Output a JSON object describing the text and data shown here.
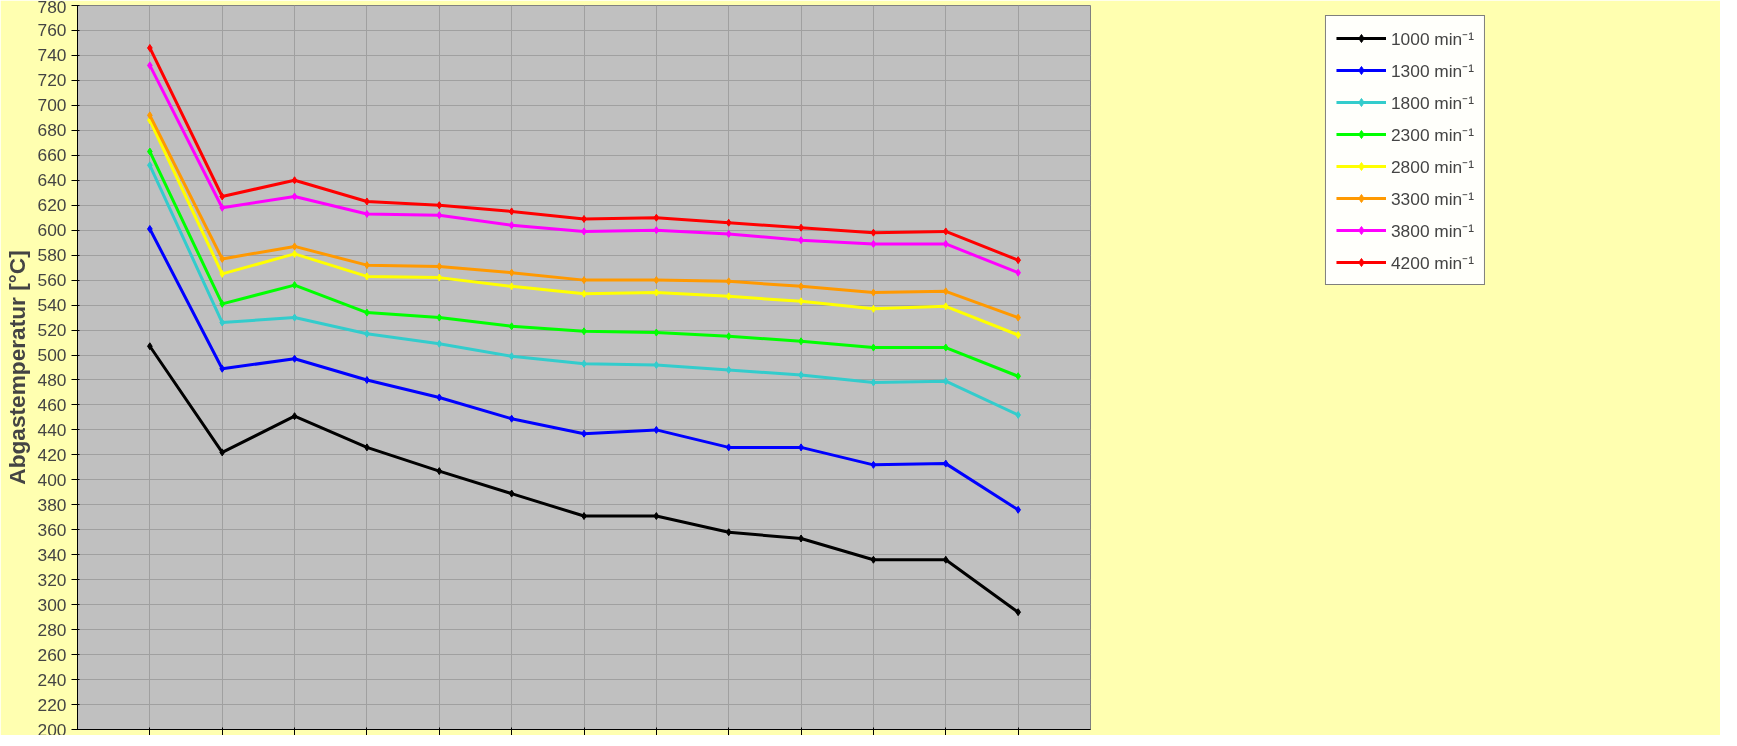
{
  "chart_data": {
    "type": "line",
    "ylabel": "Abgastemperatur [°C]",
    "categories": [
      null,
      null,
      null,
      null,
      null,
      null,
      null,
      null,
      null,
      null,
      null,
      null,
      null
    ],
    "ylim": [
      200,
      780
    ],
    "yticks": [
      200,
      220,
      240,
      260,
      280,
      300,
      320,
      340,
      360,
      380,
      400,
      420,
      440,
      460,
      480,
      500,
      520,
      540,
      560,
      580,
      600,
      620,
      640,
      660,
      680,
      700,
      720,
      740,
      760,
      780
    ],
    "grid": true,
    "legend": "right",
    "marker": "diamond",
    "line_style": "solid",
    "tick_labels": "y",
    "series": [
      {
        "name": "1000 min⁻¹",
        "color": "#000000",
        "values": [
          507,
          422,
          451,
          426,
          407,
          389,
          371,
          371,
          358,
          353,
          336,
          336,
          294
        ]
      },
      {
        "name": "1300 min⁻¹",
        "color": "#0000ff",
        "values": [
          601,
          489,
          497,
          480,
          466,
          449,
          437,
          440,
          426,
          426,
          412,
          413,
          376
        ]
      },
      {
        "name": "1800 min⁻¹",
        "color": "#33cccc",
        "values": [
          652,
          526,
          530,
          517,
          509,
          499,
          493,
          492,
          488,
          484,
          478,
          479,
          452
        ]
      },
      {
        "name": "2300 min⁻¹",
        "color": "#00ff00",
        "values": [
          663,
          541,
          556,
          534,
          530,
          523,
          519,
          518,
          515,
          511,
          506,
          506,
          483
        ]
      },
      {
        "name": "2800 min⁻¹",
        "color": "#ffff00",
        "values": [
          688,
          565,
          581,
          563,
          562,
          555,
          549,
          550,
          547,
          543,
          537,
          539,
          516
        ]
      },
      {
        "name": "3300 min⁻¹",
        "color": "#ff9900",
        "values": [
          692,
          577,
          587,
          572,
          571,
          566,
          560,
          560,
          559,
          555,
          550,
          551,
          530
        ]
      },
      {
        "name": "3800 min⁻¹",
        "color": "#ff00ff",
        "values": [
          732,
          618,
          627,
          613,
          612,
          604,
          599,
          600,
          597,
          592,
          589,
          589,
          566
        ]
      },
      {
        "name": "4200 min⁻¹",
        "color": "#ff0000",
        "values": [
          746,
          627,
          640,
          623,
          620,
          615,
          609,
          610,
          606,
          602,
          598,
          599,
          576
        ]
      }
    ]
  }
}
